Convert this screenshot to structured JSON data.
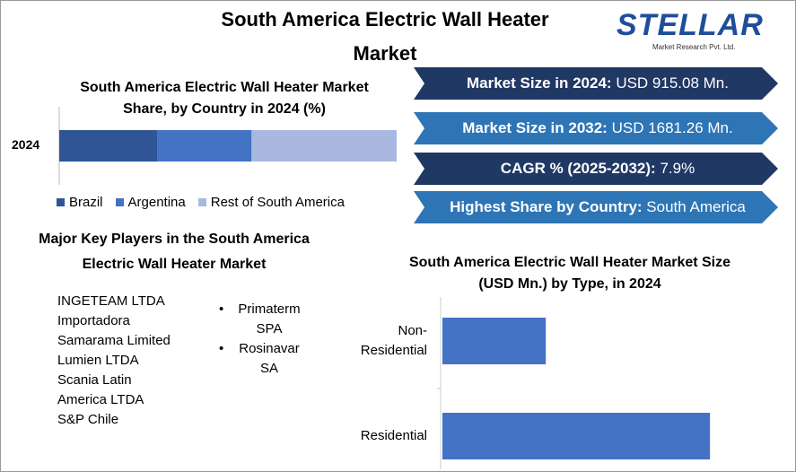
{
  "header": {
    "title": "South America Electric Wall Heater Market",
    "logo": {
      "name": "STELLAR",
      "tagline": "Market Research Pvt. Ltd."
    }
  },
  "stats": [
    {
      "label": "Market Size in 2024:",
      "value": "USD 915.08 Mn."
    },
    {
      "label": "Market Size in 2032:",
      "value": "USD 1681.26 Mn."
    },
    {
      "label": "CAGR % (2025-2032):",
      "value": "7.9%"
    },
    {
      "label": "Highest Share by Country:",
      "value": "South America"
    }
  ],
  "players": {
    "title": "Major Key Players in the South America Electric Wall Heater Market",
    "list": [
      "INGETEAM LTDA",
      "Importadora",
      "Samarama Limited",
      "Lumien LTDA",
      "Scania Latin",
      "America LTDA",
      "S&P Chile"
    ],
    "bullets": [
      "Primaterm SPA",
      "Rosinavar SA"
    ]
  },
  "chart_data": [
    {
      "type": "stacked_bar",
      "title": "South America Electric Wall Heater Market Share, by Country in 2024 (%)",
      "categories": [
        "2024"
      ],
      "series": [
        {
          "name": "Brazil",
          "color": "#2f5597",
          "values": [
            29
          ]
        },
        {
          "name": "Argentina",
          "color": "#4472c4",
          "values": [
            28
          ]
        },
        {
          "name": "Rest of South America",
          "color": "#a9b8e0",
          "values": [
            43
          ]
        }
      ],
      "xlim": [
        0,
        100
      ],
      "legend": "bottom"
    },
    {
      "type": "bar",
      "title": "South America Electric Wall Heater Market Size (USD Mn.) by Type, in 2024",
      "categories": [
        "Non-Residential",
        "Residential"
      ],
      "values": [
        255,
        660
      ],
      "color": "#4472c4",
      "xlim": [
        0,
        850
      ]
    }
  ]
}
